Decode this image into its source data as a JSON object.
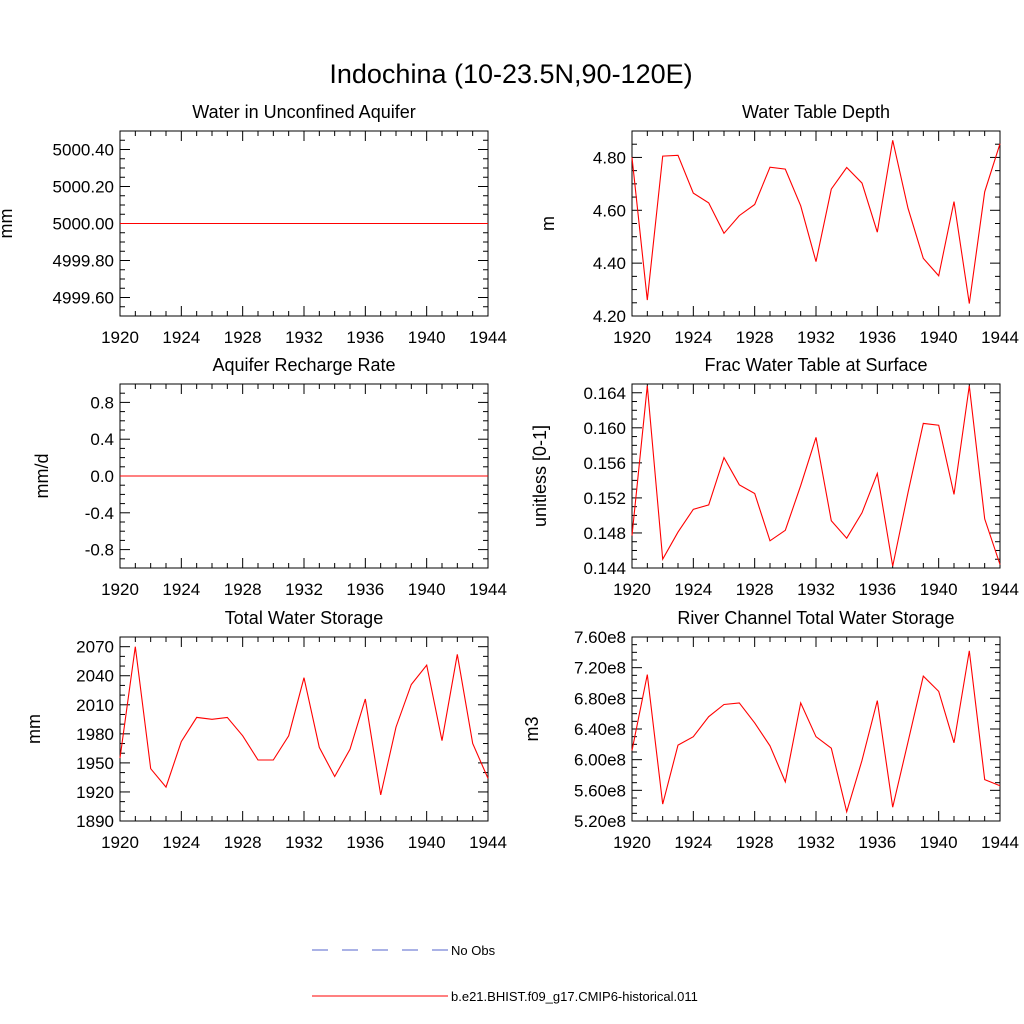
{
  "page_title": "Indochina (10-23.5N,90-120E)",
  "legend": {
    "obs_label": "No Obs",
    "obs_color": "#5566cc",
    "model_label": "b.e21.BHIST.f09_g17.CMIP6-historical.011",
    "model_color": "#ff0000"
  },
  "chart_data": [
    {
      "type": "line",
      "title": "Water in Unconfined Aquifer",
      "xlabel": "",
      "ylabel": "mm",
      "xlim": [
        1920,
        1944
      ],
      "ylim": [
        4999.5,
        5000.5
      ],
      "x_ticks": [
        1920,
        1924,
        1928,
        1932,
        1936,
        1940,
        1944
      ],
      "x_tick_labels": [
        "1920",
        "1924",
        "1928",
        "1932",
        "1936",
        "1940",
        "1944"
      ],
      "y_ticks": [
        4999.6,
        4999.8,
        5000.0,
        5000.2,
        5000.4
      ],
      "y_tick_labels": [
        "4999.60",
        "4999.80",
        "5000.00",
        "5000.20",
        "5000.40"
      ],
      "y_minor_step": 0.05,
      "series": [
        {
          "name": "b.e21.BHIST.f09_g17.CMIP6-historical.011",
          "color": "#ff0000",
          "x": [
            1920,
            1921,
            1922,
            1923,
            1924,
            1925,
            1926,
            1927,
            1928,
            1929,
            1930,
            1931,
            1932,
            1933,
            1934,
            1935,
            1936,
            1937,
            1938,
            1939,
            1940,
            1941,
            1942,
            1943,
            1944
          ],
          "values": [
            5000,
            5000,
            5000,
            5000,
            5000,
            5000,
            5000,
            5000,
            5000,
            5000,
            5000,
            5000,
            5000,
            5000,
            5000,
            5000,
            5000,
            5000,
            5000,
            5000,
            5000,
            5000,
            5000,
            5000,
            5000
          ]
        }
      ]
    },
    {
      "type": "line",
      "title": "Water Table Depth",
      "xlabel": "",
      "ylabel": "m",
      "xlim": [
        1920,
        1944
      ],
      "ylim": [
        4.2,
        4.9
      ],
      "x_ticks": [
        1920,
        1924,
        1928,
        1932,
        1936,
        1940,
        1944
      ],
      "x_tick_labels": [
        "1920",
        "1924",
        "1928",
        "1932",
        "1936",
        "1940",
        "1944"
      ],
      "y_ticks": [
        4.2,
        4.4,
        4.6,
        4.8
      ],
      "y_tick_labels": [
        "4.20",
        "4.40",
        "4.60",
        "4.80"
      ],
      "y_minor_step": 0.05,
      "series": [
        {
          "name": "b.e21.BHIST.f09_g17.CMIP6-historical.011",
          "color": "#ff0000",
          "x": [
            1920,
            1921,
            1922,
            1923,
            1924,
            1925,
            1926,
            1927,
            1928,
            1929,
            1930,
            1931,
            1932,
            1933,
            1934,
            1935,
            1936,
            1937,
            1938,
            1939,
            1940,
            1941,
            1942,
            1943,
            1944
          ],
          "values": [
            4.8,
            4.26,
            4.805,
            4.808,
            4.665,
            4.628,
            4.513,
            4.58,
            4.622,
            4.763,
            4.756,
            4.617,
            4.406,
            4.68,
            4.762,
            4.703,
            4.517,
            4.865,
            4.608,
            4.418,
            4.352,
            4.633,
            4.247,
            4.67,
            4.852
          ]
        }
      ]
    },
    {
      "type": "line",
      "title": "Aquifer Recharge Rate",
      "xlabel": "",
      "ylabel": "mm/d",
      "xlim": [
        1920,
        1944
      ],
      "ylim": [
        -1.0,
        1.0
      ],
      "x_ticks": [
        1920,
        1924,
        1928,
        1932,
        1936,
        1940,
        1944
      ],
      "x_tick_labels": [
        "1920",
        "1924",
        "1928",
        "1932",
        "1936",
        "1940",
        "1944"
      ],
      "y_ticks": [
        -0.8,
        -0.4,
        0.0,
        0.4,
        0.8
      ],
      "y_tick_labels": [
        "-0.8",
        "-0.4",
        "0.0",
        "0.4",
        "0.8"
      ],
      "y_minor_step": 0.1,
      "series": [
        {
          "name": "b.e21.BHIST.f09_g17.CMIP6-historical.011",
          "color": "#ff0000",
          "x": [
            1920,
            1921,
            1922,
            1923,
            1924,
            1925,
            1926,
            1927,
            1928,
            1929,
            1930,
            1931,
            1932,
            1933,
            1934,
            1935,
            1936,
            1937,
            1938,
            1939,
            1940,
            1941,
            1942,
            1943,
            1944
          ],
          "values": [
            0,
            0,
            0,
            0,
            0,
            0,
            0,
            0,
            0,
            0,
            0,
            0,
            0,
            0,
            0,
            0,
            0,
            0,
            0,
            0,
            0,
            0,
            0,
            0,
            0
          ]
        }
      ]
    },
    {
      "type": "line",
      "title": "Frac Water Table at Surface",
      "xlabel": "",
      "ylabel": "unitless [0-1]",
      "xlim": [
        1920,
        1944
      ],
      "ylim": [
        0.144,
        0.165
      ],
      "x_ticks": [
        1920,
        1924,
        1928,
        1932,
        1936,
        1940,
        1944
      ],
      "x_tick_labels": [
        "1920",
        "1924",
        "1928",
        "1932",
        "1936",
        "1940",
        "1944"
      ],
      "y_ticks": [
        0.144,
        0.148,
        0.152,
        0.156,
        0.16,
        0.164
      ],
      "y_tick_labels": [
        "0.144",
        "0.148",
        "0.152",
        "0.156",
        "0.160",
        "0.164"
      ],
      "y_minor_step": 0.001,
      "series": [
        {
          "name": "b.e21.BHIST.f09_g17.CMIP6-historical.011",
          "color": "#ff0000",
          "x": [
            1920,
            1921,
            1922,
            1923,
            1924,
            1925,
            1926,
            1927,
            1928,
            1929,
            1930,
            1931,
            1932,
            1933,
            1934,
            1935,
            1936,
            1937,
            1938,
            1939,
            1940,
            1941,
            1942,
            1943,
            1944
          ],
          "values": [
            0.1477,
            0.1648,
            0.145,
            0.1481,
            0.1507,
            0.1512,
            0.1566,
            0.1535,
            0.1525,
            0.1471,
            0.1483,
            0.1534,
            0.1589,
            0.1494,
            0.1474,
            0.1503,
            0.1548,
            0.1442,
            0.1526,
            0.1605,
            0.1603,
            0.1524,
            0.1648,
            0.1496,
            0.1444
          ]
        }
      ]
    },
    {
      "type": "line",
      "title": "Total Water Storage",
      "xlabel": "",
      "ylabel": "mm",
      "xlim": [
        1920,
        1944
      ],
      "ylim": [
        1890,
        2080
      ],
      "x_ticks": [
        1920,
        1924,
        1928,
        1932,
        1936,
        1940,
        1944
      ],
      "x_tick_labels": [
        "1920",
        "1924",
        "1928",
        "1932",
        "1936",
        "1940",
        "1944"
      ],
      "y_ticks": [
        1890,
        1920,
        1950,
        1980,
        2010,
        2040,
        2070
      ],
      "y_tick_labels": [
        "1890",
        "1920",
        "1950",
        "1980",
        "2010",
        "2040",
        "2070"
      ],
      "y_minor_step": 10,
      "series": [
        {
          "name": "b.e21.BHIST.f09_g17.CMIP6-historical.011",
          "color": "#ff0000",
          "x": [
            1920,
            1921,
            1922,
            1923,
            1924,
            1925,
            1926,
            1927,
            1928,
            1929,
            1930,
            1931,
            1932,
            1933,
            1934,
            1935,
            1936,
            1937,
            1938,
            1939,
            1940,
            1941,
            1942,
            1943,
            1944
          ],
          "values": [
            1955,
            2070,
            1944,
            1925,
            1972,
            1997,
            1995,
            1997,
            1978,
            1953,
            1953,
            1978,
            2038,
            1966,
            1936,
            1964,
            2016,
            1917,
            1987,
            2031,
            2051,
            1973,
            2062,
            1970,
            1934
          ]
        }
      ]
    },
    {
      "type": "line",
      "title": "River Channel Total Water Storage",
      "xlabel": "",
      "ylabel": "m3",
      "xlim": [
        1920,
        1944
      ],
      "ylim": [
        520000000,
        760000000
      ],
      "x_ticks": [
        1920,
        1924,
        1928,
        1932,
        1936,
        1940,
        1944
      ],
      "x_tick_labels": [
        "1920",
        "1924",
        "1928",
        "1932",
        "1936",
        "1940",
        "1944"
      ],
      "y_ticks": [
        520000000,
        560000000,
        600000000,
        640000000,
        680000000,
        720000000,
        760000000
      ],
      "y_tick_labels": [
        "5.20e8",
        "5.60e8",
        "6.00e8",
        "6.40e8",
        "6.80e8",
        "7.20e8",
        "7.60e8"
      ],
      "y_minor_step": 10000000,
      "series": [
        {
          "name": "b.e21.BHIST.f09_g17.CMIP6-historical.011",
          "color": "#ff0000",
          "x": [
            1920,
            1921,
            1922,
            1923,
            1924,
            1925,
            1926,
            1927,
            1928,
            1929,
            1930,
            1931,
            1932,
            1933,
            1934,
            1935,
            1936,
            1937,
            1938,
            1939,
            1940,
            1941,
            1942,
            1943,
            1944
          ],
          "values": [
            612000000,
            711000000,
            542000000,
            619000000,
            630000000,
            656000000,
            672000000,
            674000000,
            648000000,
            618000000,
            571000000,
            674000000,
            630000000,
            615000000,
            532000000,
            599000000,
            677000000,
            538000000,
            623000000,
            709000000,
            689000000,
            622000000,
            742000000,
            574000000,
            566000000
          ]
        }
      ]
    }
  ]
}
